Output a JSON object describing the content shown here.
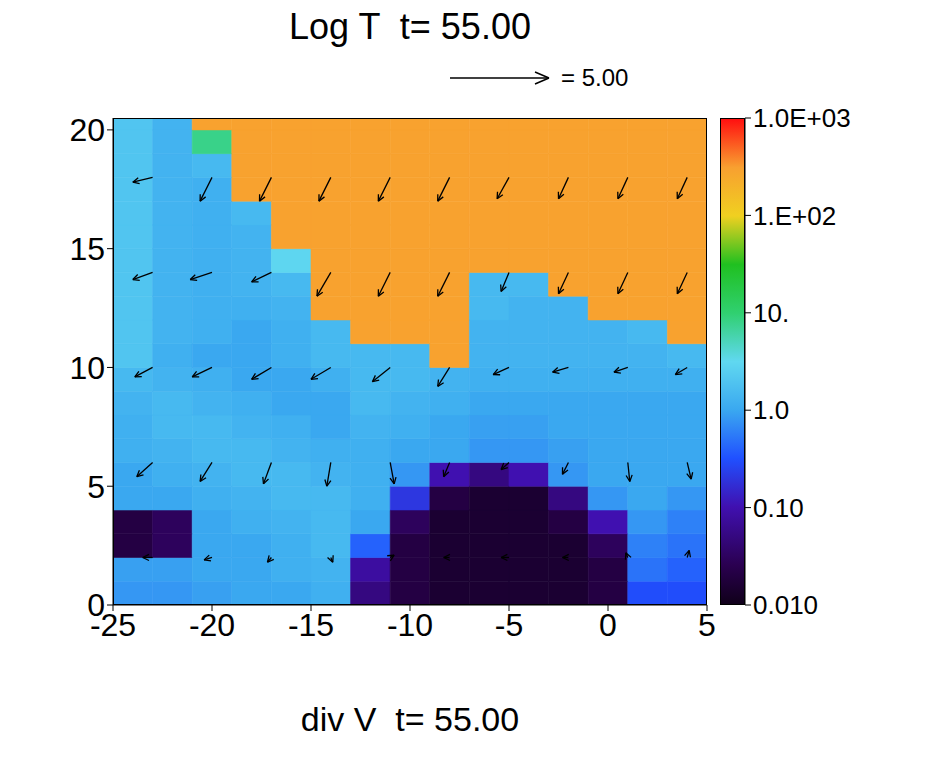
{
  "chart_data": {
    "type": "heatmap",
    "title": "Log T  t= 55.00",
    "subtitle": "div V  t= 55.00",
    "xlim": [
      -25,
      5
    ],
    "xticks": [
      -25,
      -20,
      -15,
      -10,
      -5,
      0,
      5
    ],
    "ylim": [
      0,
      20.5
    ],
    "yticks": [
      0,
      5,
      10,
      15,
      20
    ],
    "x_edges": [
      -25,
      -23,
      -21,
      -19,
      -17,
      -15,
      -13,
      -11,
      -9,
      -7,
      -5,
      -3,
      -1,
      1,
      3,
      5
    ],
    "y_edges": [
      0,
      1,
      2,
      3,
      4,
      5,
      6,
      7,
      8,
      9,
      10,
      11,
      12,
      13,
      14,
      15,
      16,
      17,
      18,
      19,
      20,
      20.5
    ],
    "cells": [
      [
        0.8,
        0.8,
        0.9,
        1,
        1,
        1.2,
        0.05,
        0.02,
        0.015,
        0.015,
        0.015,
        0.015,
        0.02,
        0.3,
        0.3
      ],
      [
        0.9,
        0.9,
        1,
        1,
        1.2,
        1.3,
        0.08,
        0.02,
        0.015,
        0.015,
        0.015,
        0.015,
        0.02,
        0.5,
        0.4
      ],
      [
        0.02,
        0.03,
        1,
        1,
        1.2,
        1.5,
        0.4,
        0.02,
        0.015,
        0.015,
        0.015,
        0.015,
        0.03,
        0.6,
        0.5
      ],
      [
        0.02,
        0.03,
        1,
        1.2,
        1.3,
        1.5,
        1,
        0.03,
        0.015,
        0.015,
        0.015,
        0.02,
        0.1,
        0.8,
        0.6
      ],
      [
        1,
        1,
        1.2,
        1.3,
        1.5,
        1.5,
        1.2,
        0.2,
        0.02,
        0.015,
        0.015,
        0.05,
        0.8,
        1,
        0.8
      ],
      [
        1,
        1.2,
        1.3,
        1.5,
        1.5,
        1.3,
        1.2,
        0.8,
        0.1,
        0.05,
        0.1,
        0.8,
        1,
        1,
        1
      ],
      [
        1.2,
        1.3,
        1.5,
        1.5,
        1.3,
        1.2,
        1.2,
        1,
        1,
        0.8,
        0.8,
        0.9,
        1,
        1,
        1
      ],
      [
        1.2,
        1.5,
        1.5,
        1.3,
        1.2,
        1,
        1.3,
        1.2,
        1,
        0.9,
        0.9,
        1,
        1,
        1,
        1
      ],
      [
        1.3,
        1.5,
        1.3,
        1.2,
        1,
        1,
        1.5,
        1.3,
        1.2,
        1,
        1,
        1,
        1,
        1,
        1
      ],
      [
        1.5,
        1.3,
        1.2,
        1,
        1,
        1.2,
        1.5,
        1.5,
        1.3,
        1.2,
        1.2,
        1.2,
        1.2,
        1.2,
        1.2
      ],
      [
        2,
        1.2,
        1,
        1,
        1.2,
        1.5,
        1.5,
        1.5,
        300,
        1.3,
        1.3,
        1.3,
        1.3,
        1.3,
        1.5
      ],
      [
        2,
        1.3,
        1.2,
        1,
        1.2,
        1.5,
        300,
        300,
        300,
        1.3,
        1.3,
        1.3,
        1.3,
        1.5,
        300
      ],
      [
        2,
        1.3,
        1.2,
        1.2,
        1.3,
        300,
        300,
        300,
        300,
        1.5,
        1.3,
        1.3,
        300,
        300,
        300
      ],
      [
        2,
        1.3,
        1.2,
        1.3,
        1.5,
        300,
        300,
        300,
        300,
        1.5,
        1.5,
        300,
        300,
        300,
        300
      ],
      [
        2,
        1.3,
        1.2,
        1.3,
        3,
        300,
        300,
        300,
        300,
        300,
        300,
        300,
        300,
        300,
        300
      ],
      [
        2,
        1.3,
        1.2,
        1.3,
        300,
        300,
        300,
        300,
        300,
        300,
        300,
        300,
        300,
        300,
        300
      ],
      [
        2,
        1.3,
        1.2,
        1.5,
        300,
        300,
        300,
        300,
        300,
        300,
        300,
        300,
        300,
        300,
        300
      ],
      [
        2,
        1.3,
        1.2,
        300,
        300,
        300,
        300,
        300,
        300,
        300,
        300,
        300,
        300,
        300,
        300
      ],
      [
        2,
        1.3,
        1.5,
        300,
        300,
        300,
        300,
        300,
        300,
        300,
        300,
        300,
        300,
        300,
        300
      ],
      [
        2,
        1.3,
        8,
        300,
        300,
        300,
        300,
        300,
        300,
        300,
        300,
        300,
        300,
        300,
        300
      ],
      [
        2,
        1.3,
        300,
        300,
        300,
        300,
        300,
        300,
        300,
        300,
        300,
        300,
        300,
        300,
        300
      ]
    ],
    "colorbar": {
      "range": [
        0.01,
        1000
      ],
      "log": true,
      "ticks": [
        {
          "value": 0.01,
          "label": "0.010"
        },
        {
          "value": 0.1,
          "label": "0.10"
        },
        {
          "value": 1,
          "label": "1.0"
        },
        {
          "value": 10,
          "label": "10."
        },
        {
          "value": 100,
          "label": "1.E+02"
        },
        {
          "value": 1000,
          "label": "1.0E+03"
        }
      ]
    },
    "vectors": [
      {
        "x": -23,
        "y": 18,
        "u": -1.0,
        "v": -0.2
      },
      {
        "x": -20,
        "y": 18,
        "u": -0.6,
        "v": -1.0
      },
      {
        "x": -17,
        "y": 18,
        "u": -0.6,
        "v": -1.0
      },
      {
        "x": -14,
        "y": 18,
        "u": -0.6,
        "v": -1.0
      },
      {
        "x": -11,
        "y": 18,
        "u": -0.6,
        "v": -1.0
      },
      {
        "x": -8,
        "y": 18,
        "u": -0.6,
        "v": -1.0
      },
      {
        "x": -5,
        "y": 18,
        "u": -0.6,
        "v": -0.9
      },
      {
        "x": -2,
        "y": 18,
        "u": -0.5,
        "v": -0.9
      },
      {
        "x": 1,
        "y": 18,
        "u": -0.5,
        "v": -0.9
      },
      {
        "x": 4,
        "y": 18,
        "u": -0.5,
        "v": -0.9
      },
      {
        "x": -23,
        "y": 14,
        "u": -1.0,
        "v": -0.3
      },
      {
        "x": -20,
        "y": 14,
        "u": -1.1,
        "v": -0.3
      },
      {
        "x": -17,
        "y": 14,
        "u": -1.0,
        "v": -0.4
      },
      {
        "x": -14,
        "y": 14,
        "u": -0.7,
        "v": -1.0
      },
      {
        "x": -11,
        "y": 14,
        "u": -0.6,
        "v": -1.0
      },
      {
        "x": -8,
        "y": 14,
        "u": -0.6,
        "v": -1.0
      },
      {
        "x": -5,
        "y": 14,
        "u": -0.4,
        "v": -0.8
      },
      {
        "x": -2,
        "y": 14,
        "u": -0.5,
        "v": -0.9
      },
      {
        "x": 1,
        "y": 14,
        "u": -0.5,
        "v": -0.9
      },
      {
        "x": 4,
        "y": 14,
        "u": -0.5,
        "v": -0.9
      },
      {
        "x": -23,
        "y": 10,
        "u": -0.9,
        "v": -0.4
      },
      {
        "x": -20,
        "y": 10,
        "u": -1.0,
        "v": -0.4
      },
      {
        "x": -17,
        "y": 10,
        "u": -1.0,
        "v": -0.5
      },
      {
        "x": -14,
        "y": 10,
        "u": -1.0,
        "v": -0.5
      },
      {
        "x": -11,
        "y": 10,
        "u": -0.9,
        "v": -0.6
      },
      {
        "x": -8,
        "y": 10,
        "u": -0.6,
        "v": -0.8
      },
      {
        "x": -5,
        "y": 10,
        "u": -0.8,
        "v": -0.3
      },
      {
        "x": -2,
        "y": 10,
        "u": -0.8,
        "v": -0.2
      },
      {
        "x": 1,
        "y": 10,
        "u": -0.7,
        "v": -0.2
      },
      {
        "x": 4,
        "y": 10,
        "u": -0.6,
        "v": -0.3
      },
      {
        "x": -23,
        "y": 6,
        "u": -0.8,
        "v": -0.6
      },
      {
        "x": -20,
        "y": 6,
        "u": -0.6,
        "v": -0.8
      },
      {
        "x": -17,
        "y": 6,
        "u": -0.4,
        "v": -0.9
      },
      {
        "x": -14,
        "y": 6,
        "u": -0.2,
        "v": -1.0
      },
      {
        "x": -11,
        "y": 6,
        "u": 0.2,
        "v": -0.9
      },
      {
        "x": -8,
        "y": 6,
        "u": -0.3,
        "v": -0.6
      },
      {
        "x": -5,
        "y": 6,
        "u": -0.4,
        "v": -0.3
      },
      {
        "x": -2,
        "y": 6,
        "u": -0.3,
        "v": -0.5
      },
      {
        "x": 1,
        "y": 6,
        "u": 0.1,
        "v": -0.8
      },
      {
        "x": 4,
        "y": 6,
        "u": 0.2,
        "v": -0.7
      },
      {
        "x": -23,
        "y": 2,
        "u": -0.5,
        "v": 0
      },
      {
        "x": -20,
        "y": 2,
        "u": -0.4,
        "v": -0.1
      },
      {
        "x": -17,
        "y": 2,
        "u": -0.2,
        "v": -0.2
      },
      {
        "x": -14,
        "y": 2,
        "u": 0.1,
        "v": -0.2
      },
      {
        "x": -11,
        "y": 2,
        "u": 0.2,
        "v": 0.1
      },
      {
        "x": -8,
        "y": 2,
        "u": -0.3,
        "v": 0
      },
      {
        "x": -5,
        "y": 2,
        "u": -0.4,
        "v": 0
      },
      {
        "x": -2,
        "y": 2,
        "u": -0.3,
        "v": 0
      },
      {
        "x": 1,
        "y": 2,
        "u": -0.1,
        "v": 0.2
      },
      {
        "x": 4,
        "y": 2,
        "u": 0.1,
        "v": 0.3
      }
    ],
    "reference_vector": {
      "value": 5,
      "label": "= 5.00"
    }
  }
}
